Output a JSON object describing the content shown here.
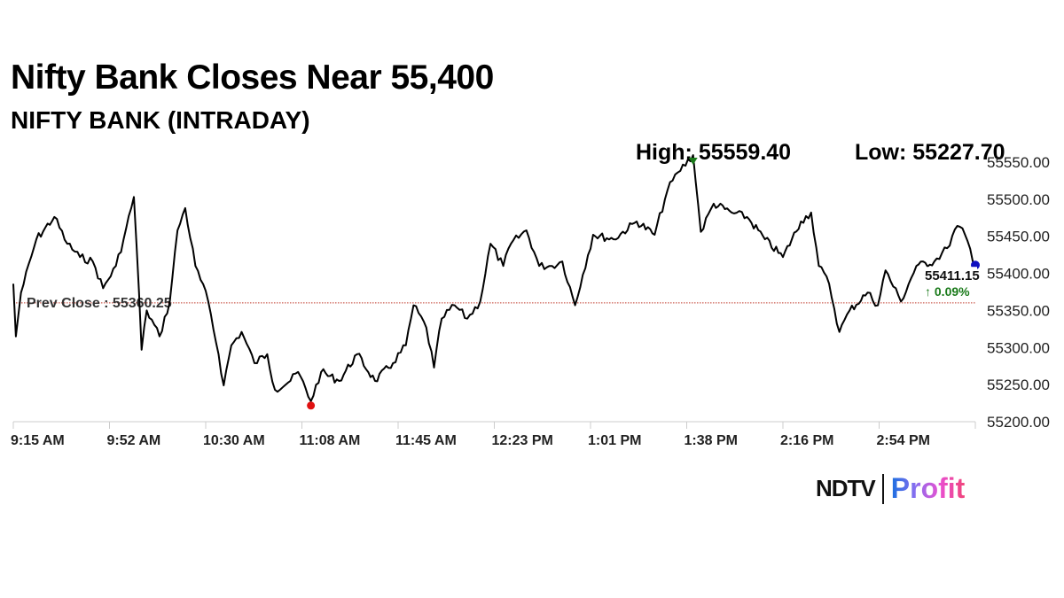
{
  "header": {
    "title": "Nifty Bank Closes Near 55,400",
    "subtitle": "NIFTY BANK (INTRADAY)",
    "high_label": "High: 55559.40",
    "low_label": "Low: 55227.70"
  },
  "chart_data": {
    "type": "line",
    "title": "Nifty Bank Closes Near 55,400",
    "subtitle": "NIFTY BANK (INTRADAY)",
    "x_ticks": [
      "9:15 AM",
      "9:52 AM",
      "10:30 AM",
      "11:08 AM",
      "11:45 AM",
      "12:23 PM",
      "1:01 PM",
      "1:38 PM",
      "2:16 PM",
      "2:54 PM"
    ],
    "y_ticks": [
      "55200.00",
      "55250.00",
      "55300.00",
      "55350.00",
      "55400.00",
      "55450.00",
      "55500.00",
      "55550.00"
    ],
    "xlim": [
      "09:15",
      "15:30"
    ],
    "ylim": [
      55200,
      55550
    ],
    "grid": false,
    "prev_close": {
      "label": "Prev Close : 55360.25",
      "value": 55360.25,
      "color": "#c0392b"
    },
    "high": {
      "time": "13:40",
      "value": 55559.4,
      "color": "#1a7a1a"
    },
    "low": {
      "time": "11:11",
      "value": 55227.7,
      "color": "#e01010"
    },
    "last": {
      "time": "15:30",
      "value": 55411.15,
      "label": "55411.15",
      "change": "↑ 0.09%",
      "change_color": "#1a7a1a",
      "marker_color": "#1010c0"
    },
    "line_color": "#000000",
    "series": [
      {
        "values": [
          [
            "09:15",
            55386
          ],
          [
            "09:16",
            55315
          ],
          [
            "09:18",
            55374
          ],
          [
            "09:24",
            55446
          ],
          [
            "09:31",
            55476
          ],
          [
            "09:36",
            55440
          ],
          [
            "09:41",
            55422
          ],
          [
            "09:46",
            55416
          ],
          [
            "09:50",
            55380
          ],
          [
            "09:55",
            55410
          ],
          [
            "09:58",
            55446
          ],
          [
            "10:02",
            55503
          ],
          [
            "10:04",
            55374
          ],
          [
            "10:05",
            55297
          ],
          [
            "10:07",
            55350
          ],
          [
            "10:12",
            55315
          ],
          [
            "10:16",
            55362
          ],
          [
            "10:19",
            55458
          ],
          [
            "10:22",
            55488
          ],
          [
            "10:26",
            55410
          ],
          [
            "10:31",
            55362
          ],
          [
            "10:35",
            55291
          ],
          [
            "10:37",
            55249
          ],
          [
            "10:40",
            55303
          ],
          [
            "10:44",
            55321
          ],
          [
            "10:49",
            55279
          ],
          [
            "10:54",
            55291
          ],
          [
            "10:57",
            55243
          ],
          [
            "11:03",
            55255
          ],
          [
            "11:06",
            55267
          ],
          [
            "11:11",
            55227.7
          ],
          [
            "11:15",
            55267
          ],
          [
            "11:22",
            55255
          ],
          [
            "11:29",
            55291
          ],
          [
            "11:36",
            55255
          ],
          [
            "11:43",
            55279
          ],
          [
            "11:48",
            55303
          ],
          [
            "11:51",
            55357
          ],
          [
            "11:56",
            55327
          ],
          [
            "11:59",
            55273
          ],
          [
            "12:02",
            55339
          ],
          [
            "12:07",
            55357
          ],
          [
            "12:12",
            55339
          ],
          [
            "12:17",
            55362
          ],
          [
            "12:21",
            55440
          ],
          [
            "12:26",
            55410
          ],
          [
            "12:29",
            55440
          ],
          [
            "12:35",
            55458
          ],
          [
            "12:40",
            55410
          ],
          [
            "12:45",
            55410
          ],
          [
            "12:49",
            55416
          ],
          [
            "12:54",
            55357
          ],
          [
            "12:57",
            55398
          ],
          [
            "13:01",
            55452
          ],
          [
            "13:09",
            55446
          ],
          [
            "13:18",
            55470
          ],
          [
            "13:25",
            55452
          ],
          [
            "13:30",
            55512
          ],
          [
            "13:34",
            55536
          ],
          [
            "13:40",
            55559.4
          ],
          [
            "13:43",
            55456
          ],
          [
            "13:48",
            55494
          ],
          [
            "13:55",
            55482
          ],
          [
            "14:01",
            55476
          ],
          [
            "14:08",
            55446
          ],
          [
            "14:15",
            55422
          ],
          [
            "14:22",
            55470
          ],
          [
            "14:26",
            55482
          ],
          [
            "14:29",
            55410
          ],
          [
            "14:33",
            55386
          ],
          [
            "14:37",
            55321
          ],
          [
            "14:41",
            55350
          ],
          [
            "14:48",
            55374
          ],
          [
            "14:52",
            55357
          ],
          [
            "14:55",
            55404
          ],
          [
            "15:01",
            55362
          ],
          [
            "15:07",
            55410
          ],
          [
            "15:14",
            55416
          ],
          [
            "15:19",
            55434
          ],
          [
            "15:23",
            55464
          ],
          [
            "15:26",
            55452
          ],
          [
            "15:30",
            55411.15
          ]
        ]
      }
    ]
  },
  "logo": {
    "brand": "NDTV",
    "product": "Profit"
  }
}
